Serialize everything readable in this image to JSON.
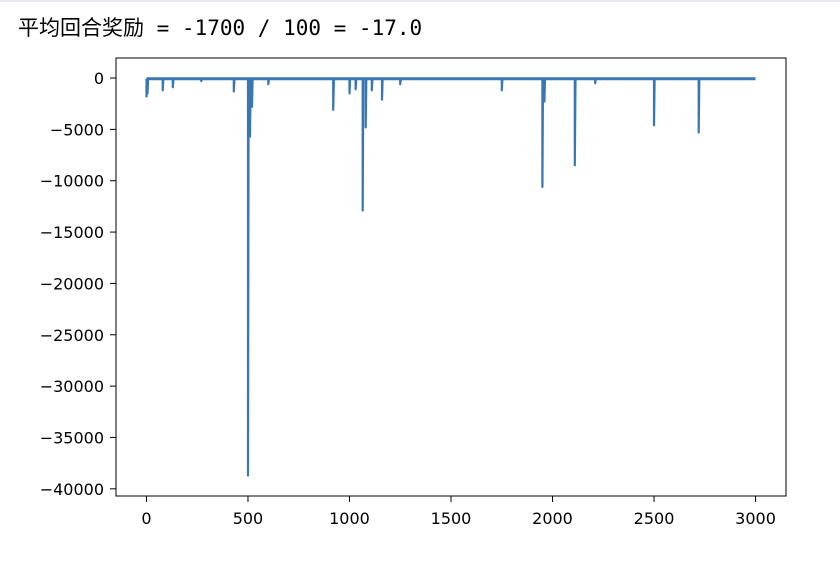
{
  "output": {
    "text": "平均回合奖励 = -1700 / 100 = -17.0"
  },
  "chart_data": {
    "type": "line",
    "title": "",
    "xlabel": "",
    "ylabel": "",
    "xlim": [
      -150,
      3150
    ],
    "ylim": [
      -40700,
      1950
    ],
    "x_ticks": [
      0,
      500,
      1000,
      1500,
      2000,
      2500,
      3000
    ],
    "x_tick_labels": [
      "0",
      "500",
      "1000",
      "1500",
      "2000",
      "2500",
      "3000"
    ],
    "y_ticks": [
      0,
      -5000,
      -10000,
      -15000,
      -20000,
      -25000,
      -30000,
      -35000,
      -40000
    ],
    "y_tick_labels": [
      "0",
      "−5000",
      "−10000",
      "−15000",
      "−20000",
      "−25000",
      "−30000",
      "−35000",
      "−40000"
    ],
    "grid": false,
    "line_color": "#3a76af",
    "baseline": -100,
    "series": [
      {
        "x_range": [
          0,
          3000
        ],
        "spikes": [
          [
            0,
            -1800
          ],
          [
            5,
            -1500
          ],
          [
            80,
            -1200
          ],
          [
            130,
            -900
          ],
          [
            270,
            -300
          ],
          [
            430,
            -1300
          ],
          [
            500,
            -38700
          ],
          [
            510,
            -5700
          ],
          [
            520,
            -2800
          ],
          [
            600,
            -600
          ],
          [
            920,
            -3100
          ],
          [
            1000,
            -1500
          ],
          [
            1030,
            -1100
          ],
          [
            1065,
            -12900
          ],
          [
            1080,
            -4800
          ],
          [
            1110,
            -1200
          ],
          [
            1160,
            -2100
          ],
          [
            1250,
            -600
          ],
          [
            1750,
            -1200
          ],
          [
            1950,
            -10600
          ],
          [
            1960,
            -2300
          ],
          [
            2110,
            -8500
          ],
          [
            2210,
            -500
          ],
          [
            2500,
            -4600
          ],
          [
            2720,
            -5300
          ]
        ]
      }
    ]
  }
}
